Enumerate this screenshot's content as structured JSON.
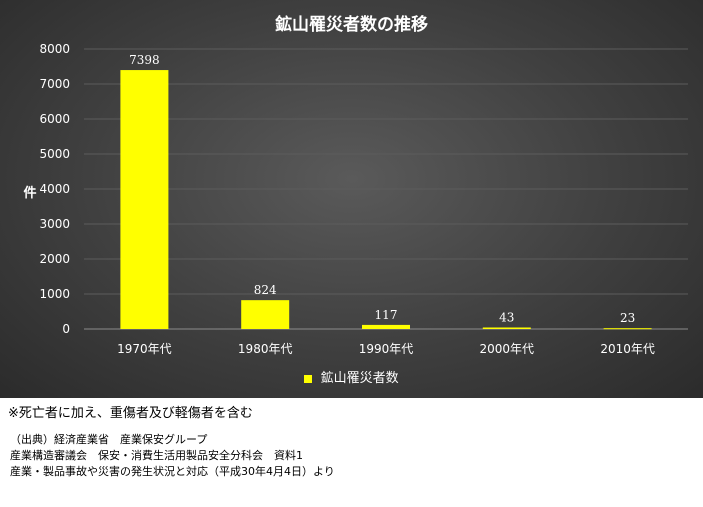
{
  "chart_data": {
    "type": "bar",
    "title": "鉱山罹災者数の推移",
    "ylabel": "件",
    "xlabel": "",
    "categories": [
      "1970年代",
      "1980年代",
      "1990年代",
      "2000年代",
      "2010年代"
    ],
    "series": [
      {
        "name": "鉱山罹災者数",
        "values": [
          7398,
          824,
          117,
          43,
          23
        ]
      }
    ],
    "ylim": [
      0,
      8000
    ],
    "yticks": [
      0,
      1000,
      2000,
      3000,
      4000,
      5000,
      6000,
      7000,
      8000
    ],
    "grid": true,
    "legend": "bottom",
    "bar_color": "#ffff00"
  },
  "note": "※死亡者に加え、重傷者及び軽傷者を含む",
  "source": {
    "line1": "（出典）経済産業省　産業保安グループ",
    "line2": "産業構造審議会　保安・消費生活用製品安全分科会　資料1",
    "line3": "産業・製品事故や災害の発生状況と対応（平成30年4月4日）より"
  }
}
